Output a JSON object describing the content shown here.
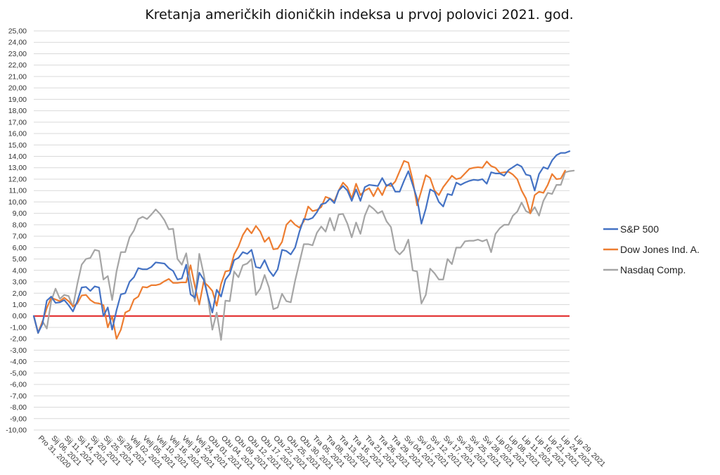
{
  "chart_data": {
    "type": "line",
    "title": "Kretanja američkih dioničkih indeksa u prvoj polovici 2021. god.",
    "xlabel": "",
    "ylabel": "",
    "ylim": [
      -10,
      25
    ],
    "y_ticks": [
      -10,
      -9,
      -8,
      -7,
      -6,
      -5,
      -4,
      -3,
      -2,
      -1,
      0,
      1,
      2,
      3,
      4,
      5,
      6,
      7,
      8,
      9,
      10,
      11,
      12,
      13,
      14,
      15,
      16,
      17,
      18,
      19,
      20,
      21,
      22,
      23,
      24,
      25
    ],
    "y_tick_labels": [
      "-10,00",
      "-9,00",
      "-8,00",
      "-7,00",
      "-6,00",
      "-5,00",
      "-4,00",
      "-3,00",
      "-2,00",
      "-1,00",
      "0,00",
      "1,00",
      "2,00",
      "3,00",
      "4,00",
      "5,00",
      "6,00",
      "7,00",
      "8,00",
      "9,00",
      "10,00",
      "11,00",
      "12,00",
      "13,00",
      "14,00",
      "15,00",
      "16,00",
      "17,00",
      "18,00",
      "19,00",
      "20,00",
      "21,00",
      "22,00",
      "23,00",
      "24,00",
      "25,00"
    ],
    "x_tick_labels": [
      "Pro 31, 2020",
      "Sij 06, 2021",
      "Sij 11, 2021",
      "Sij 14, 2021",
      "Sij 20, 2021",
      "Sij 25, 2021",
      "Sij 28, 2021",
      "Velj 02, 2021",
      "Velj 05, 2021",
      "Velj 10, 2021",
      "Velj 16, 2021",
      "Velj 19, 2021",
      "Velj 24, 2021",
      "Ožu 01, 2021",
      "Ožu 04, 2021",
      "Ožu 09, 2021",
      "Ožu 12, 2021",
      "Ožu 17, 2021",
      "Ožu 22, 2021",
      "Ožu 25, 2021",
      "Ožu 30, 2021",
      "Tra 05, 2021",
      "Tra 08, 2021",
      "Tra 13, 2021",
      "Tra 16, 2021",
      "Tra 21, 2021",
      "Tra 26, 2021",
      "Tra 29, 2021",
      "Svi 04, 2021",
      "Svi 07, 2021",
      "Svi 12, 2021",
      "Svi 17, 2021",
      "Svi 20, 2021",
      "Svi 25, 2021",
      "Svi 28, 2021",
      "Lip 03, 2021",
      "Lip 08, 2021",
      "Lip 11, 2021",
      "Lip 16, 2021",
      "Lip 21, 2021",
      "Lip 24, 2021",
      "Lip 29, 2021"
    ],
    "grid": true,
    "zero_line_color": "#e02020",
    "legend_position": "right",
    "series": [
      {
        "name": "S&P 500",
        "color": "#4472c4",
        "values": [
          0,
          -1.48,
          -0.7,
          1.35,
          1.7,
          1.15,
          1.2,
          1.4,
          0.95,
          0.4,
          1.3,
          2.5,
          2.55,
          2.2,
          2.6,
          2.5,
          0,
          0.75,
          -1.2,
          0.5,
          1.9,
          2.0,
          3.0,
          3.4,
          4.2,
          4.1,
          4.1,
          4.3,
          4.7,
          4.65,
          4.6,
          4.2,
          3.95,
          3.2,
          3.3,
          4.5,
          1.9,
          1.6,
          3.8,
          3.2,
          1.7,
          0.3,
          2.3,
          1.7,
          3.2,
          3.7,
          4.9,
          5.1,
          5.6,
          5.45,
          5.8,
          4.3,
          4.2,
          4.9,
          4.0,
          3.5,
          4.1,
          5.8,
          5.7,
          5.4,
          6.0,
          7.4,
          8.5,
          8.45,
          8.6,
          9.1,
          9.8,
          9.9,
          10.3,
          9.9,
          11.0,
          11.4,
          11.0,
          10.1,
          11.1,
          10.1,
          11.3,
          11.5,
          11.45,
          11.4,
          12.1,
          11.4,
          11.65,
          10.9,
          10.9,
          11.85,
          12.7,
          11.5,
          10.3,
          8.1,
          9.4,
          11.1,
          10.9,
          10.0,
          9.6,
          10.7,
          10.6,
          11.7,
          11.5,
          11.7,
          11.85,
          11.95,
          11.9,
          12.0,
          11.6,
          12.6,
          12.5,
          12.5,
          12.3,
          12.8,
          13.05,
          13.3,
          13.1,
          12.4,
          12.3,
          11.0,
          12.45,
          13.05,
          12.9,
          13.65,
          14.1,
          14.3,
          14.3,
          14.45
        ]
      },
      {
        "name": "Dow Jones Ind. A.",
        "color": "#ed7d31",
        "values": [
          0,
          -1.48,
          -0.5,
          0.7,
          1.6,
          1.45,
          1.3,
          1.6,
          1.3,
          0.85,
          1.1,
          1.8,
          1.85,
          1.4,
          1.15,
          1.1,
          0.95,
          -1.0,
          0,
          -2.0,
          -1.2,
          0.3,
          0.5,
          1.45,
          1.7,
          2.55,
          2.5,
          2.7,
          2.7,
          2.8,
          3.05,
          3.25,
          2.9,
          2.9,
          2.95,
          2.95,
          4.45,
          2.6,
          1.0,
          3.0,
          2.65,
          2.2,
          0.9,
          2.8,
          3.9,
          4.0,
          5.4,
          6.1,
          7.1,
          7.7,
          7.25,
          7.9,
          7.4,
          6.5,
          6.9,
          5.85,
          5.9,
          6.5,
          8.0,
          8.4,
          8.0,
          7.75,
          8.3,
          9.6,
          9.2,
          9.3,
          9.55,
          10.45,
          10.3,
          10.05,
          11.0,
          11.7,
          11.3,
          10.3,
          11.6,
          10.6,
          11.0,
          11.2,
          10.5,
          11.25,
          10.6,
          11.5,
          11.4,
          11.8,
          12.7,
          13.6,
          13.45,
          11.9,
          9.7,
          11.0,
          12.35,
          12.1,
          11.0,
          10.6,
          11.3,
          11.8,
          12.3,
          12.0,
          12.1,
          12.5,
          12.9,
          13.0,
          13.05,
          13.0,
          13.55,
          13.15,
          13.0,
          12.55,
          12.6,
          12.65,
          12.4,
          12.0,
          11.0,
          10.3,
          9.0,
          10.6,
          10.9,
          10.8,
          11.5,
          12.45,
          12.0,
          12.05,
          12.75
        ]
      },
      {
        "name": "Nasdaq Comp.",
        "color": "#a5a5a5",
        "values": [
          0,
          -1.5,
          -0.45,
          -1.1,
          1.3,
          2.4,
          1.5,
          1.85,
          1.75,
          0.8,
          2.8,
          4.5,
          5.0,
          5.1,
          5.8,
          5.7,
          3.2,
          3.5,
          1.4,
          3.9,
          5.6,
          5.6,
          6.9,
          7.5,
          8.5,
          8.7,
          8.5,
          8.9,
          9.35,
          8.95,
          8.4,
          7.6,
          7.65,
          5.0,
          4.5,
          5.5,
          3.1,
          1.3,
          5.45,
          3.7,
          1.6,
          -1.2,
          0.3,
          -2.1,
          1.35,
          1.3,
          3.9,
          3.4,
          4.45,
          4.6,
          5.0,
          1.85,
          2.4,
          3.6,
          2.5,
          0.6,
          0.75,
          1.95,
          1.3,
          1.2,
          3.1,
          4.7,
          6.3,
          6.3,
          6.2,
          7.3,
          7.85,
          7.4,
          8.6,
          7.5,
          8.9,
          8.95,
          8.1,
          6.9,
          8.2,
          7.2,
          8.8,
          9.7,
          9.4,
          9.0,
          9.2,
          8.3,
          7.8,
          5.8,
          5.4,
          5.8,
          6.7,
          4.0,
          3.9,
          1.1,
          1.85,
          4.15,
          3.75,
          3.2,
          3.2,
          5.0,
          4.55,
          6.0,
          6.0,
          6.55,
          6.6,
          6.6,
          6.7,
          6.55,
          6.7,
          5.6,
          7.2,
          7.7,
          8.0,
          8.0,
          8.8,
          9.15,
          9.95,
          9.2,
          9.0,
          9.55,
          8.8,
          10.1,
          10.8,
          10.7,
          11.5,
          11.5,
          12.6,
          12.7,
          12.75
        ]
      }
    ]
  }
}
